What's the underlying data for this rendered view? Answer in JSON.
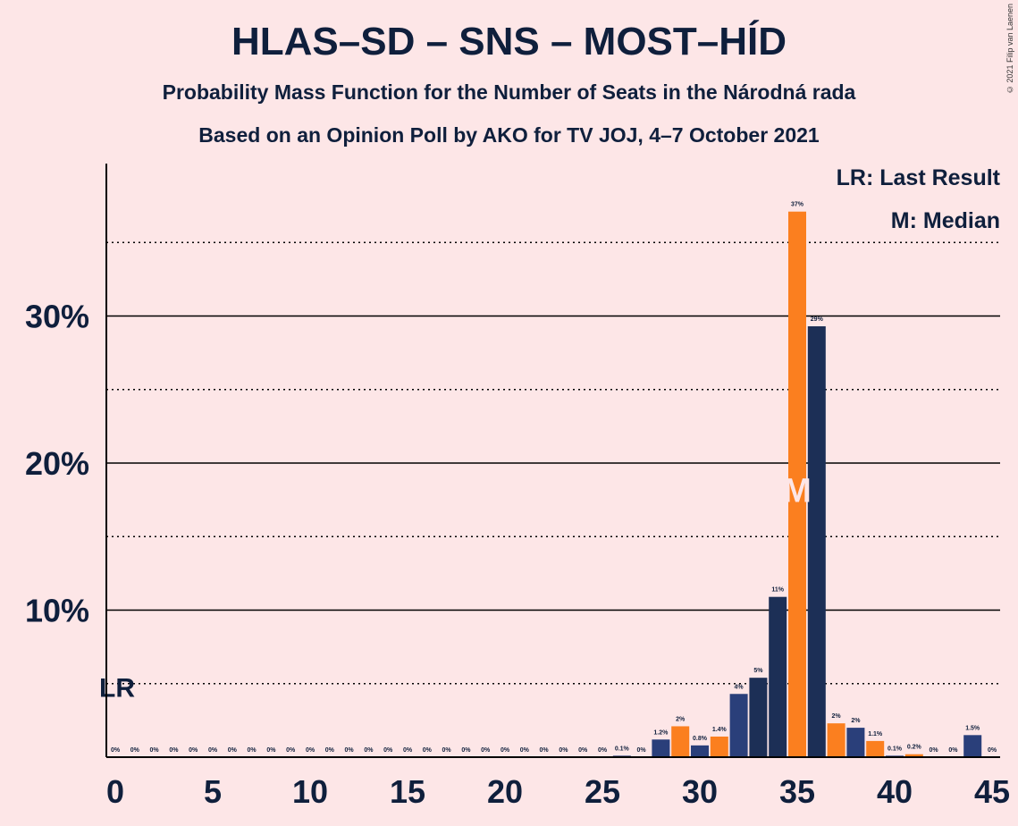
{
  "copyright": "© 2021 Filip van Laenen",
  "legend": {
    "last_result": "LR: Last Result",
    "median": "M: Median"
  },
  "colors": {
    "background": "#fde6e7",
    "navy": "#1c2f56",
    "navy_light": "#2a3f7a",
    "orange": "#fb7f1f",
    "axis": "#000000",
    "text": "#0f1f3c"
  },
  "chart_data": {
    "type": "bar",
    "title": "HLAS–SD – SNS – MOST–HÍD",
    "subtitle": "Probability Mass Function for the Number of Seats in the Národná rada",
    "subtitle2": "Based on an Opinion Poll by AKO for TV JOJ, 4–7 October 2021",
    "xlim": [
      0,
      45
    ],
    "ylim": [
      0,
      40
    ],
    "x_ticks": [
      0,
      5,
      10,
      15,
      20,
      25,
      30,
      35,
      40,
      45
    ],
    "y_ticks": [
      10,
      20,
      30
    ],
    "y_tick_labels": [
      "10%",
      "20%",
      "30%"
    ],
    "dotted_gridlines": [
      5,
      15,
      25,
      35
    ],
    "last_result": 0,
    "last_result_label": "LR",
    "median": 35,
    "median_label": "M",
    "seats": [
      0,
      1,
      2,
      3,
      4,
      5,
      6,
      7,
      8,
      9,
      10,
      11,
      12,
      13,
      14,
      15,
      16,
      17,
      18,
      19,
      20,
      21,
      22,
      23,
      24,
      25,
      26,
      27,
      28,
      29,
      30,
      31,
      32,
      33,
      34,
      35,
      36,
      37,
      38,
      39,
      40,
      41,
      42,
      43,
      44,
      45
    ],
    "values": [
      0,
      0,
      0,
      0,
      0,
      0,
      0,
      0,
      0,
      0,
      0,
      0,
      0,
      0,
      0,
      0,
      0,
      0,
      0,
      0,
      0,
      0,
      0,
      0,
      0,
      0,
      0.1,
      0,
      1.2,
      2.1,
      0.8,
      1.4,
      4.3,
      5.4,
      10.9,
      37.1,
      29.3,
      2.3,
      2.0,
      1.1,
      0.1,
      0.2,
      0,
      0,
      1.5,
      0
    ],
    "labels": [
      "0%",
      "0%",
      "0%",
      "0%",
      "0%",
      "0%",
      "0%",
      "0%",
      "0%",
      "0%",
      "0%",
      "0%",
      "0%",
      "0%",
      "0%",
      "0%",
      "0%",
      "0%",
      "0%",
      "0%",
      "0%",
      "0%",
      "0%",
      "0%",
      "0%",
      "0%",
      "0.1%",
      "0%",
      "1.2%",
      "2%",
      "0.8%",
      "1.4%",
      "4%",
      "5%",
      "11%",
      "37%",
      "29%",
      "2%",
      "2%",
      "1.1%",
      "0.1%",
      "0.2%",
      "0%",
      "0%",
      "1.5%",
      "0%"
    ]
  }
}
